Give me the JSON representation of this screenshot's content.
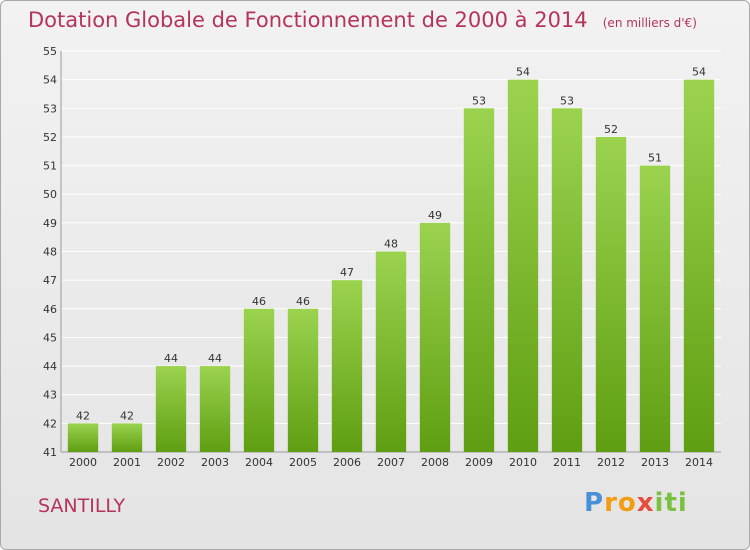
{
  "header": {
    "title": "Dotation Globale de Fonctionnement de 2000 à 2014",
    "unit": "(en milliers d'€)"
  },
  "footer": {
    "town": "SANTILLY",
    "logo_parts": [
      "P",
      "ro",
      "x",
      "iti"
    ]
  },
  "colors": {
    "title": "#b5345b",
    "bar_top": "#9bd34f",
    "bar_bottom": "#5f9e12",
    "grid": "#ffffff"
  },
  "chart_data": {
    "type": "bar",
    "title": "Dotation Globale de Fonctionnement de 2000 à 2014",
    "subtitle": "(en milliers d'€)",
    "xlabel": "",
    "ylabel": "",
    "categories": [
      "2000",
      "2001",
      "2002",
      "2003",
      "2004",
      "2005",
      "2006",
      "2007",
      "2008",
      "2009",
      "2010",
      "2011",
      "2012",
      "2013",
      "2014"
    ],
    "values": [
      42,
      42,
      44,
      44,
      46,
      46,
      47,
      48,
      49,
      53,
      54,
      53,
      52,
      51,
      54
    ],
    "ylim": [
      41,
      55
    ],
    "yticks": [
      41,
      42,
      43,
      44,
      45,
      46,
      47,
      48,
      49,
      50,
      51,
      52,
      53,
      54,
      55
    ],
    "grid": true,
    "legend": "none",
    "data_labels": true
  }
}
